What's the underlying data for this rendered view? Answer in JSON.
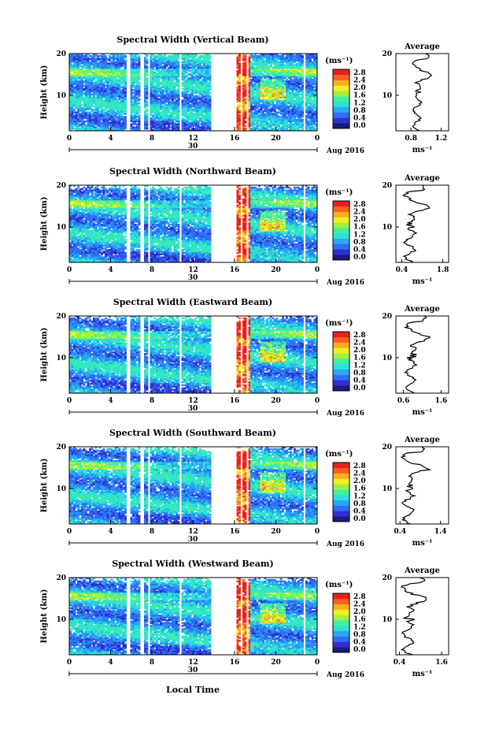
{
  "chart_data": {
    "type": "heatmap",
    "xlabel": "Local Time",
    "date_label": "Aug 2016",
    "day_label": "30",
    "units_label": "(ms⁻¹)",
    "colorbar_ticks": [
      "0.0",
      "0.4",
      "0.8",
      "1.2",
      "1.6",
      "2.0",
      "2.4",
      "2.8"
    ],
    "colorbar_colors": [
      "#1a1a80",
      "#3030d0",
      "#2f6ef5",
      "#27a8f0",
      "#2ee0d8",
      "#40f0a0",
      "#a0f040",
      "#f0f020",
      "#f8b020",
      "#f86020",
      "#e82020"
    ],
    "time_ticks": [
      "0",
      "4",
      "8",
      "12",
      "16",
      "20",
      "0"
    ],
    "time_range": [
      0,
      24
    ],
    "height_ticks": [
      "10",
      "20"
    ],
    "height_range": [
      1.5,
      20
    ],
    "ylabel": "Height (km)",
    "gaps_hours": [
      [
        5.6,
        5.9
      ],
      [
        6.9,
        7.2
      ],
      [
        7.6,
        7.9
      ],
      [
        10.6,
        10.9
      ],
      [
        13.8,
        16.1
      ],
      [
        16.6,
        16.8
      ],
      [
        17.2,
        17.4
      ],
      [
        22.6,
        22.9
      ]
    ],
    "panels": [
      {
        "title": "Spectral Width (Vertical Beam)",
        "avg_title": "Average",
        "avg_ticks": [
          "0.8",
          "1.2"
        ],
        "avg_range": [
          0.6,
          1.3
        ]
      },
      {
        "title": "Spectral Width (Northward Beam)",
        "avg_title": "Average",
        "avg_ticks": [
          "0.4",
          "1.8"
        ],
        "avg_range": [
          0.2,
          2.0
        ]
      },
      {
        "title": "Spectral Width (Eastward Beam)",
        "avg_title": "Average",
        "avg_ticks": [
          "0.6",
          "1.6"
        ],
        "avg_range": [
          0.4,
          1.8
        ]
      },
      {
        "title": "Spectral Width (Southward Beam)",
        "avg_title": "Average",
        "avg_ticks": [
          "0.4",
          "1.4"
        ],
        "avg_range": [
          0.3,
          1.6
        ]
      },
      {
        "title": "Spectral Width (Westward Beam)",
        "avg_title": "Average",
        "avg_ticks": [
          "0.4",
          "1.6"
        ],
        "avg_range": [
          0.3,
          1.8
        ]
      }
    ]
  }
}
